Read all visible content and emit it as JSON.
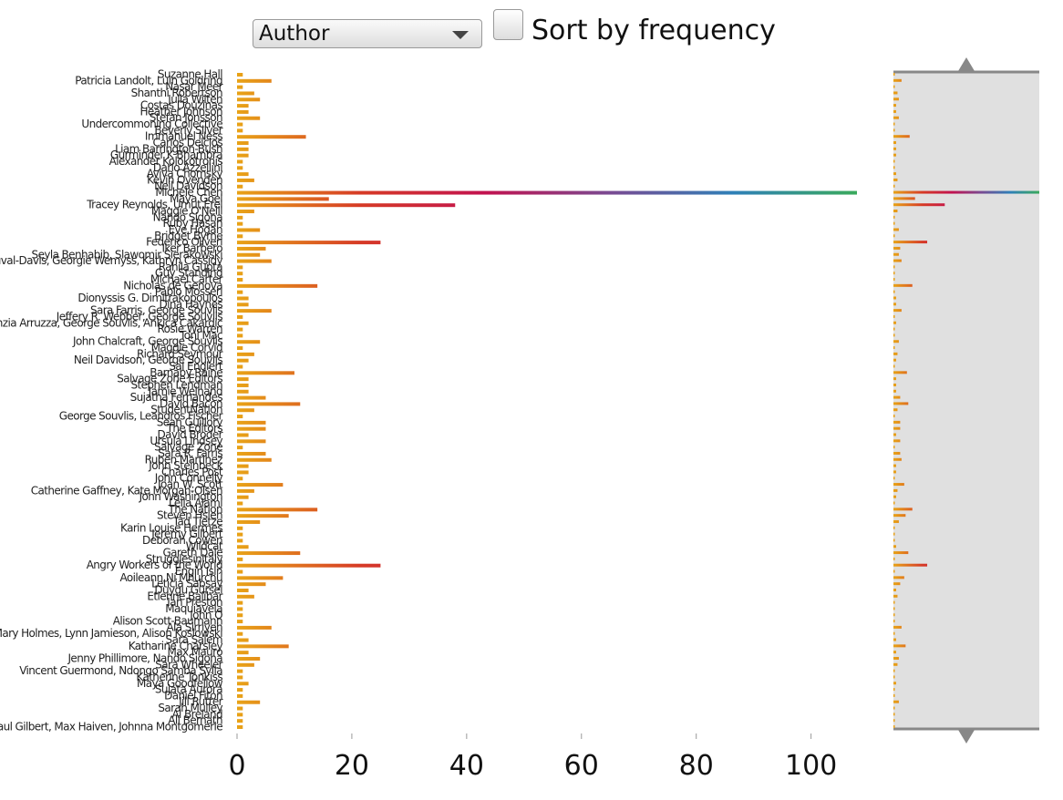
{
  "controls": {
    "dropdown": "Author",
    "checkbox_label": "Sort by frequency"
  },
  "chart_data": {
    "type": "bar",
    "orientation": "horizontal",
    "categories": [
      "Suzanne Hall",
      "Patricia Landolt, Luin Goldring",
      "Nasar Meer",
      "Shanthi Robertson",
      "Julia Wilten",
      "Costas Douzinas",
      "Heather Johnson",
      "Stefan Jonsson",
      "Undercommoning Collective",
      "Beverly Silver",
      "Immanuel Ness",
      "Carlos Delclos",
      "Liam Barrington-Bush",
      "Gurminder K Bhambra",
      "Alexander Kolokotronis",
      "Dario Azzellini",
      "Aviva Chomsky",
      "Kevin Ovenden",
      "Neil Davidson",
      "Michele Chen",
      "Maya Goel",
      "Tracey Reynolds, Umut Erel",
      "Maggie O'Neill",
      "Nando Sigona",
      "Ruby Hasan",
      "Eve Hogan",
      "Bridget Byrne",
      "Federico Oliveri",
      "Iker Barbero",
      "Seyla Benhabib, Slawomir Sierakowski",
      "Nira Yuval-Davis, Georgie Wemyss, Kathryn Cassidy",
      "Rahila Gupta",
      "Guy Standing",
      "Michael Carter",
      "Nicholas de Genova",
      "Pablo Mosseri",
      "Dionyssis G. Dimitrakopoulos",
      "Dina Haynes",
      "Sara Farris, George Souvlis",
      "Jeffery R. Webber, George Souvlis",
      "Cinzia Arruzza, George Souvlis, Ankica Cakardic",
      "Rosie Warren",
      "Toni Mac",
      "John Chalcraft, George Souvlis",
      "Maggie Corvid",
      "Richard Seymour",
      "Neil Davidson, George Souvlis",
      "Sai Englert",
      "Barnaby Raine",
      "Salvage Zone Editors",
      "Stephen Lendman",
      "Jamie Weinand",
      "Sujatha Fernandes",
      "David Bacon",
      "StudentNation",
      "George Souvlis, Leandros Fischer",
      "Sean Guillory",
      "The Editors",
      "David Broder",
      "Ursula Lindsey",
      "Salvage Zone",
      "Sara R. Farris",
      "Ruben Martinez",
      "John Steinbeck",
      "Charles Post",
      "John Connelly",
      "Joan W. Scott",
      "Catherine Gaffney, Kate Morgan-Olsen",
      "John Washington",
      "Leila Alami",
      "The Nation",
      "Steven Hsieh",
      "Tad Tietze",
      "Karin Louise Hermes",
      "Jeremy Gilbert",
      "Deborah Cowen",
      "Wildcat",
      "Gareth Dale",
      "Strugglesinitaly",
      "Angry Workers of the World",
      "Engin Isin",
      "Aoileann Ní Mhurchú",
      "Leticia Sabsay",
      "Duygu Gürsel",
      "Etienne Balibar",
      "Ian Preston",
      "Maquiavela",
      "John O",
      "Alison Scott-Baumann",
      "Ala Sirriyeh",
      "Mary Holmes, Lynn Jamieson, Alison Koslowski",
      "Sara Salem",
      "Katharine Charsley",
      "Max Mauro",
      "Jenny Phillimore, Nando Sigona",
      "Sara Wheeler",
      "Vincent Guermond, Ndongo Samba Sylla",
      "Katherine Tonkiss",
      "Maya Goodfellow",
      "Sujata Aurora",
      "Daniel Fiton",
      "Jill Rutter",
      "Sarah Mulley",
      "Al Breland",
      "Ali Bernath",
      "Paul Gilbert, Max Haiven, Johnna Montgomerie"
    ],
    "values": [
      1,
      6,
      1,
      3,
      4,
      2,
      2,
      4,
      1,
      1,
      12,
      2,
      2,
      2,
      1,
      1,
      2,
      3,
      1,
      108,
      16,
      38,
      3,
      1,
      1,
      4,
      1,
      25,
      5,
      4,
      6,
      1,
      1,
      1,
      14,
      1,
      2,
      2,
      6,
      1,
      2,
      1,
      1,
      4,
      1,
      3,
      2,
      1,
      10,
      2,
      2,
      2,
      5,
      11,
      3,
      1,
      5,
      5,
      2,
      5,
      1,
      5,
      6,
      2,
      2,
      1,
      8,
      3,
      2,
      1,
      14,
      9,
      4,
      1,
      1,
      1,
      2,
      11,
      1,
      25,
      1,
      8,
      5,
      2,
      3,
      1,
      1,
      1,
      1,
      6,
      1,
      2,
      9,
      2,
      4,
      3,
      1,
      1,
      2,
      1,
      1,
      4,
      1,
      1,
      1,
      1
    ],
    "xlim": [
      0,
      108
    ],
    "xticks": [
      0,
      20,
      40,
      60,
      80,
      100
    ],
    "colors": [
      "#e8a317",
      "#d63a26",
      "#c2124f",
      "#7a4a92",
      "#2f80b8",
      "#3aaa5c"
    ]
  }
}
